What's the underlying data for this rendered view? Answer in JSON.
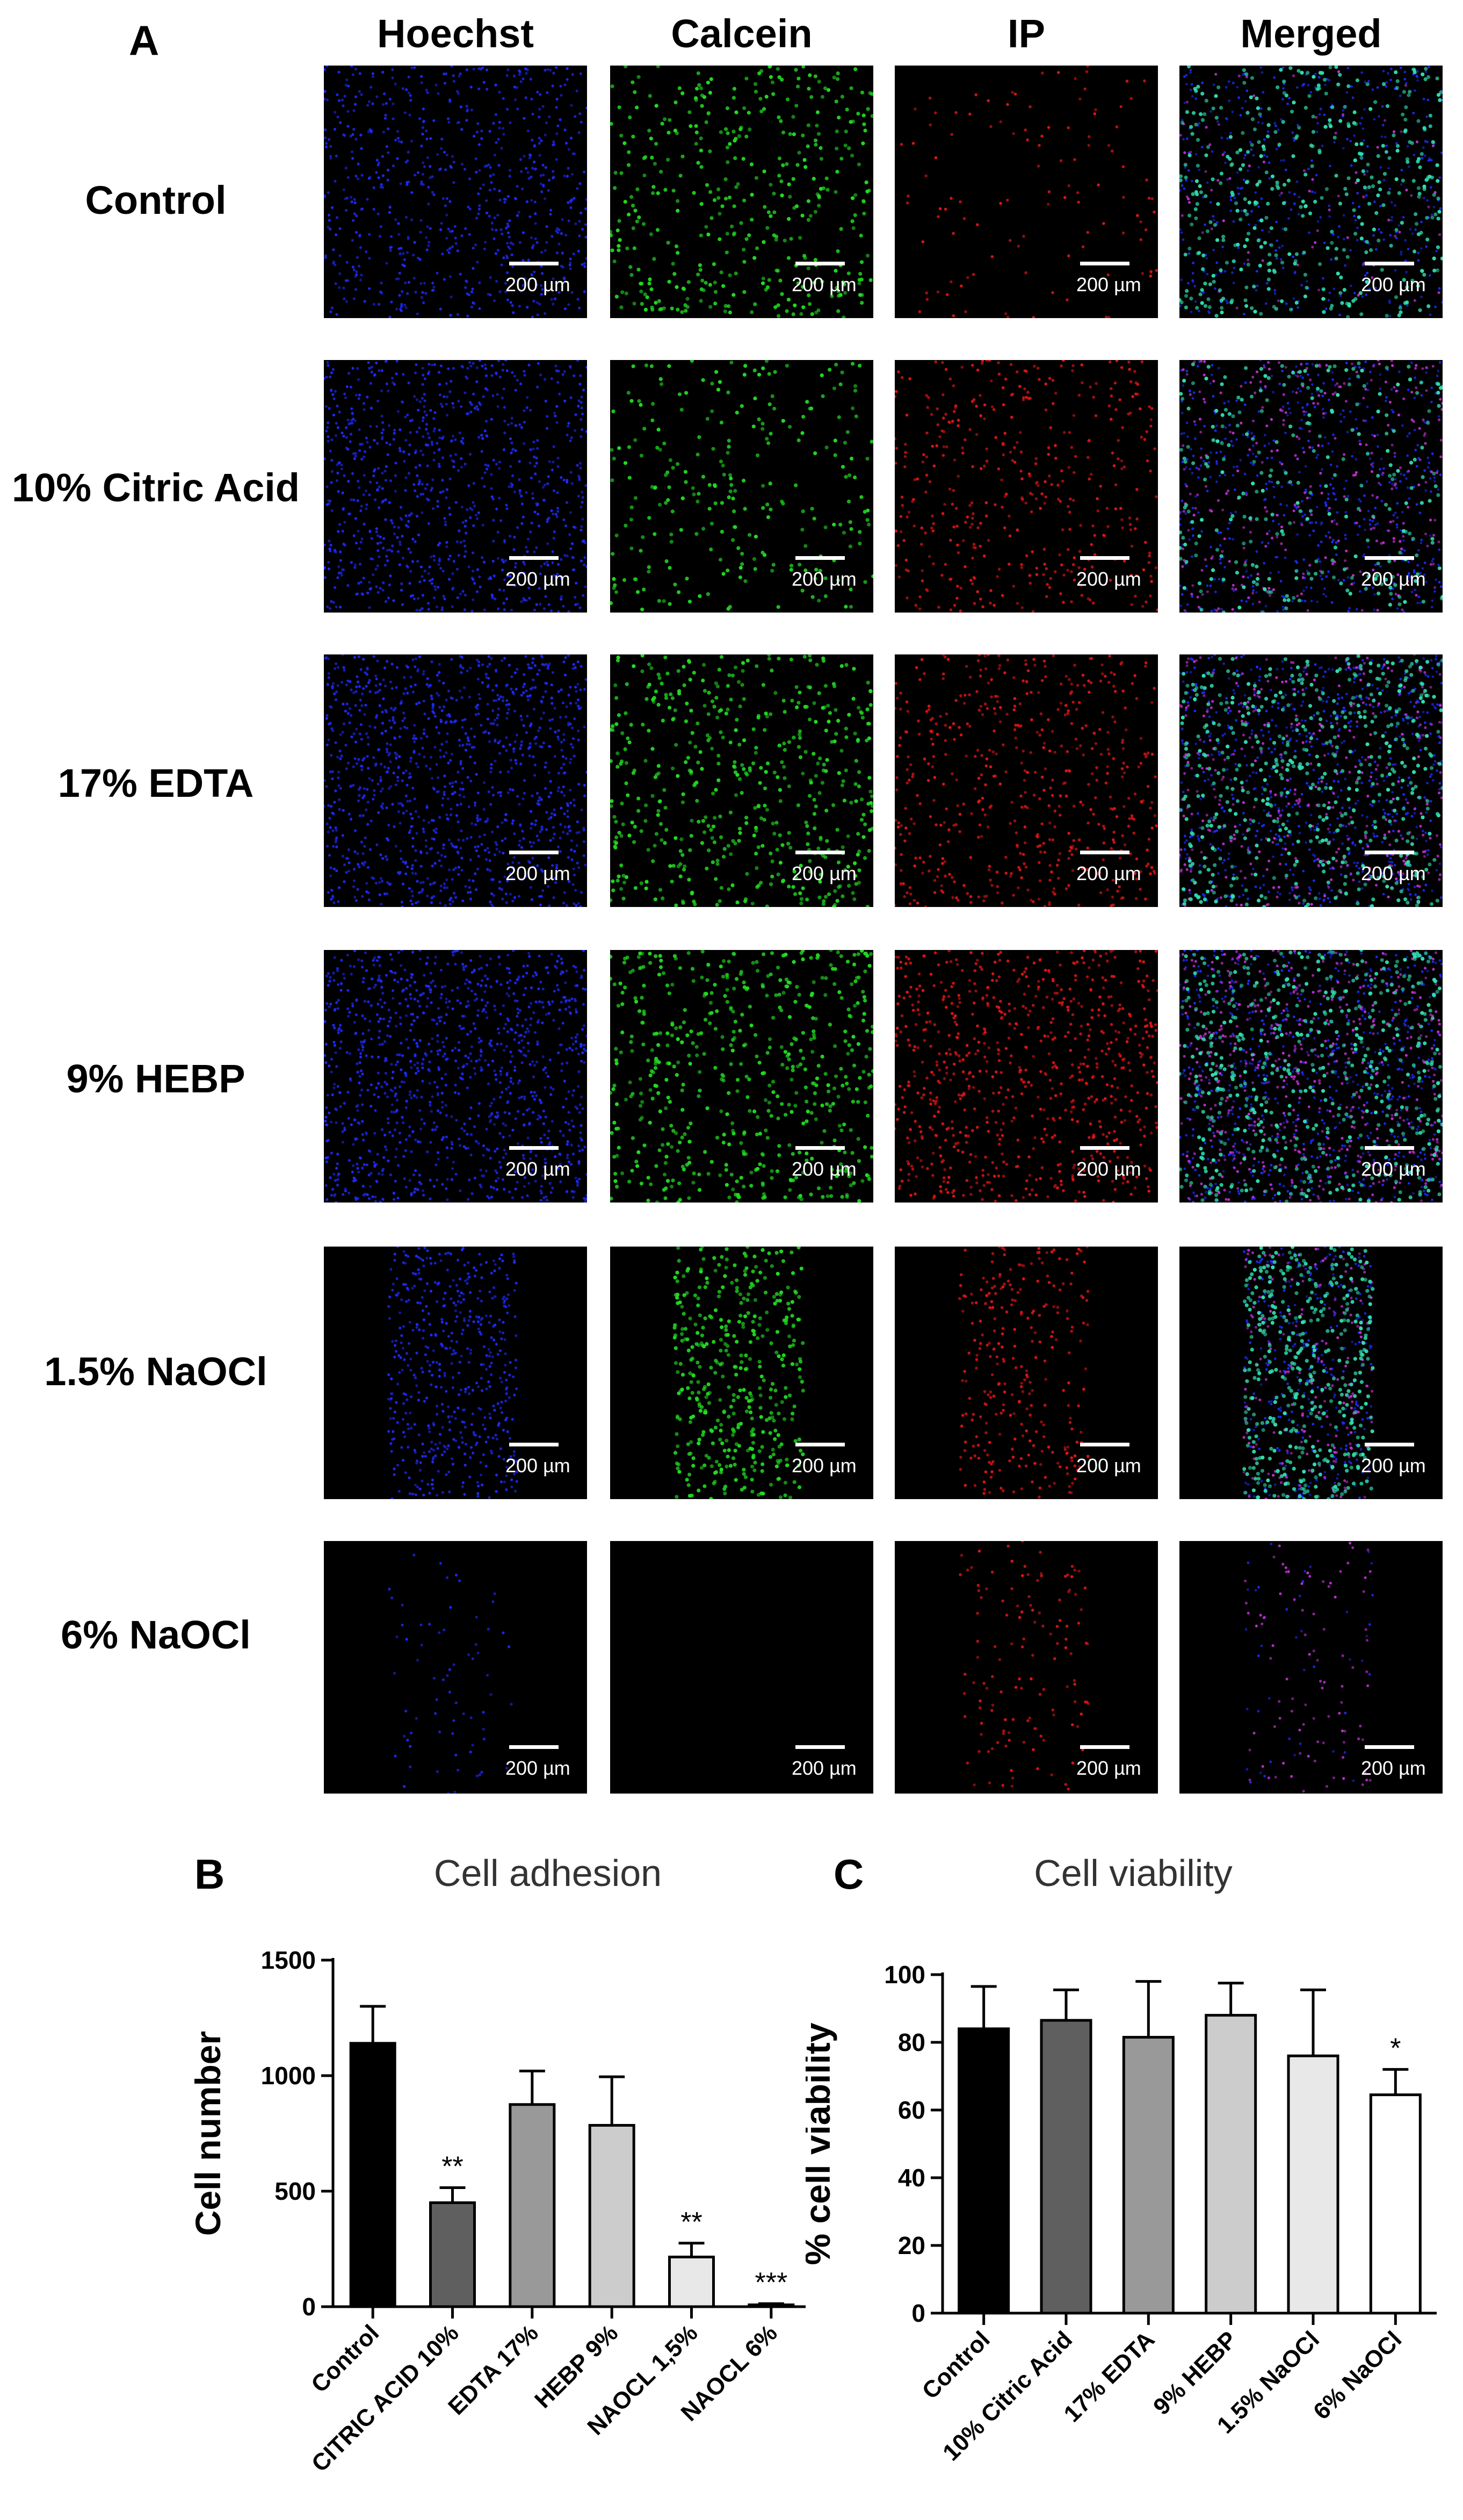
{
  "panel_a": {
    "letter": "A",
    "columns": [
      "Hoechst",
      "Calcein",
      "IP",
      "Merged"
    ],
    "rows": [
      "Control",
      "10% Citric Acid",
      "17% EDTA",
      "9% HEBP",
      "1.5% NaOCl",
      "6% NaOCl"
    ],
    "scale_label": "200 µm",
    "channel_colors": {
      "hoechst": "#1e2bff",
      "calcein": "#22dd22",
      "ip": "#e01515",
      "merged_live": "#30e0b0",
      "merged_dead": "#c030d0"
    }
  },
  "chart_data": [
    {
      "panel": "B",
      "type": "bar",
      "title": "Cell adhesion",
      "xlabel": "",
      "ylabel": "Cell number",
      "ylim": [
        0,
        1500
      ],
      "yticks": [
        0,
        500,
        1000,
        1500
      ],
      "categories": [
        "Control",
        "CITRIC ACID 10%",
        "EDTA 17%",
        "HEBP 9%",
        "NAOCL 1,5%",
        "NAOCL 6%"
      ],
      "values": [
        1140,
        450,
        875,
        785,
        215,
        8
      ],
      "errors": [
        160,
        65,
        145,
        210,
        60,
        5
      ],
      "significance": [
        "",
        "**",
        "",
        "",
        "**",
        "***"
      ],
      "bar_colors": [
        "#000000",
        "#5f5f5f",
        "#999999",
        "#cccccc",
        "#e8e8e8",
        "#ffffff"
      ]
    },
    {
      "panel": "C",
      "type": "bar",
      "title": "Cell viability",
      "xlabel": "",
      "ylabel": "% cell viability",
      "ylim": [
        0,
        100
      ],
      "yticks": [
        0,
        20,
        40,
        60,
        80,
        100
      ],
      "categories": [
        "Control",
        "10% Citric Acid",
        "17% EDTA",
        "9% HEBP",
        "1.5% NaOCl",
        "6% NaOCl"
      ],
      "values": [
        84,
        86.5,
        81.5,
        88,
        76,
        64.5
      ],
      "errors": [
        12.5,
        9,
        16.5,
        9.5,
        19.5,
        7.5
      ],
      "significance": [
        "",
        "",
        "",
        "",
        "",
        "*"
      ],
      "bar_colors": [
        "#000000",
        "#5f5f5f",
        "#999999",
        "#cccccc",
        "#e8e8e8",
        "#ffffff"
      ]
    }
  ]
}
